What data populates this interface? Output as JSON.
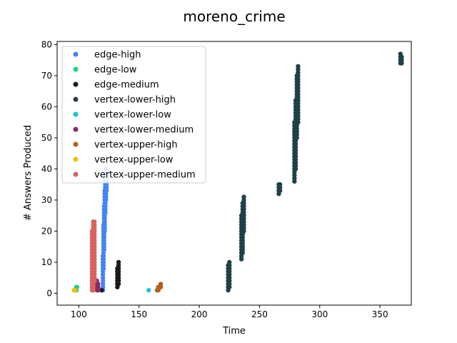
{
  "chart_data": {
    "type": "scatter",
    "title": "moreno_crime",
    "xlabel": "Time",
    "ylabel": "# Answers Produced",
    "xlim": [
      82,
      376
    ],
    "ylim": [
      -3.8,
      81
    ],
    "xticks": [
      100,
      150,
      200,
      250,
      300,
      350
    ],
    "yticks": [
      0,
      10,
      20,
      30,
      40,
      50,
      60,
      70,
      80
    ],
    "grid": false,
    "legend_position": "upper-left",
    "series": [
      {
        "name": "edge-high",
        "color": "#4285f4",
        "x": [
          120,
          120.5,
          121,
          121.5,
          122,
          122.5,
          123
        ],
        "y": [
          [
            1,
            12
          ],
          [
            8,
            22
          ],
          [
            14,
            28
          ],
          [
            20,
            33
          ],
          [
            26,
            37
          ],
          [
            30,
            40
          ],
          [
            33,
            39
          ]
        ]
      },
      {
        "name": "edge-low",
        "color": "#1fd27a",
        "x": [
          97,
          98,
          98.5
        ],
        "y": [
          [
            1,
            1
          ],
          [
            1,
            2
          ],
          [
            2,
            2
          ]
        ]
      },
      {
        "name": "edge-medium",
        "color": "#1a1a1a",
        "x": [
          119,
          132,
          133
        ],
        "y": [
          [
            1,
            1
          ],
          [
            2,
            8
          ],
          [
            3,
            10
          ]
        ]
      },
      {
        "name": "vertex-lower-high",
        "color": "#1f4047",
        "x": [
          224,
          225,
          235,
          236,
          237,
          266,
          267,
          279,
          280,
          281,
          282,
          367,
          368
        ],
        "y": [
          [
            1,
            9
          ],
          [
            2,
            10
          ],
          [
            11,
            25
          ],
          [
            13,
            29
          ],
          [
            20,
            31
          ],
          [
            32,
            35
          ],
          [
            33,
            35
          ],
          [
            36,
            55
          ],
          [
            40,
            62
          ],
          [
            50,
            70
          ],
          [
            55,
            73
          ],
          [
            74,
            77
          ],
          [
            74,
            76
          ]
        ]
      },
      {
        "name": "vertex-lower-low",
        "color": "#19c2dc",
        "x": [
          158
        ],
        "y": [
          [
            1,
            1
          ]
        ]
      },
      {
        "name": "vertex-lower-medium",
        "color": "#8b2a6b",
        "x": [
          115,
          116
        ],
        "y": [
          [
            1,
            4
          ],
          [
            1,
            3
          ]
        ]
      },
      {
        "name": "vertex-upper-high",
        "color": "#b45f1c",
        "x": [
          165,
          166,
          167,
          168
        ],
        "y": [
          [
            1,
            1
          ],
          [
            1,
            2
          ],
          [
            2,
            2
          ],
          [
            2,
            3
          ]
        ]
      },
      {
        "name": "vertex-upper-low",
        "color": "#efbf0f",
        "x": [
          96,
          97
        ],
        "y": [
          [
            1,
            1
          ],
          [
            1,
            1
          ]
        ]
      },
      {
        "name": "vertex-upper-medium",
        "color": "#d9635f",
        "x": [
          111,
          112,
          113
        ],
        "y": [
          [
            1,
            20
          ],
          [
            1,
            23
          ],
          [
            4,
            23
          ]
        ]
      }
    ]
  }
}
